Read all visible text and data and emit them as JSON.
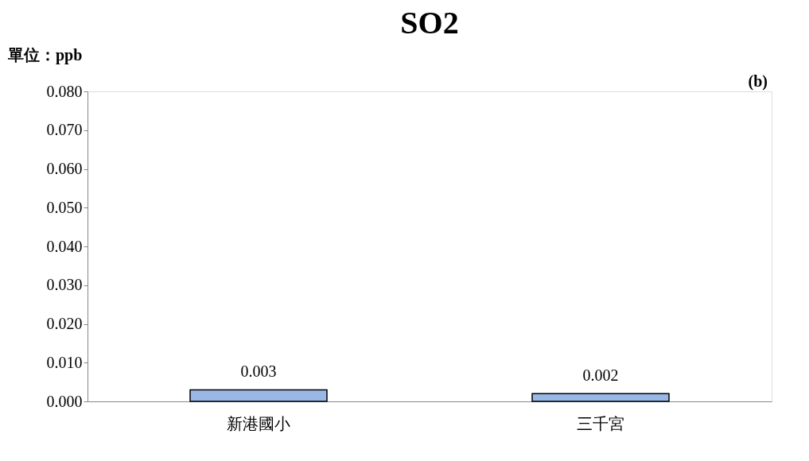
{
  "chart_data": {
    "type": "bar",
    "title": "SO2",
    "annotations": [
      "單位：ppb",
      "(b)"
    ],
    "categories": [
      "新港國小",
      "三千宮"
    ],
    "values": [
      0.003,
      0.002
    ],
    "color": "#9ab8e6",
    "ylim": [
      0,
      0.08
    ],
    "yticks": [
      {
        "value": 0,
        "label": "0.000"
      },
      {
        "value": 0.01,
        "label": "0.010"
      },
      {
        "value": 0.02,
        "label": "0.020"
      },
      {
        "value": 0.03,
        "label": "0.030"
      },
      {
        "value": 0.04,
        "label": "0.040"
      },
      {
        "value": 0.05,
        "label": "0.050"
      },
      {
        "value": 0.06,
        "label": "0.060"
      },
      {
        "value": 0.07,
        "label": "0.070"
      },
      {
        "value": 0.08,
        "label": "0.080"
      }
    ],
    "data_labels": true,
    "grid": false
  }
}
